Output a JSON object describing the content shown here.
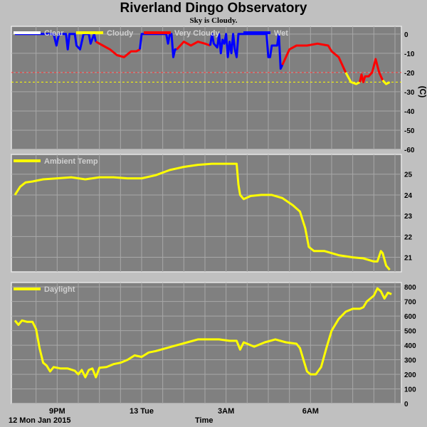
{
  "page": {
    "title": "Riverland Dingo Observatory",
    "subtitle": "Sky is Cloudy.",
    "x_axis_title": "Time",
    "date_label": "12 Mon Jan 2015"
  },
  "chart_data": [
    {
      "type": "line",
      "ylabel": "(C)",
      "ylim": [
        -60,
        4
      ],
      "yticks": [
        0,
        -10,
        -20,
        -30,
        -40,
        -50,
        -60
      ],
      "xlim": [
        0,
        10.8
      ],
      "xticks": [
        {
          "x": 1.2,
          "label": "9PM"
        },
        {
          "x": 3.6,
          "label": "13 Tue"
        },
        {
          "x": 6.0,
          "label": "3AM"
        },
        {
          "x": 8.4,
          "label": "6AM"
        }
      ],
      "thresholds": [
        {
          "value": -20,
          "color": "#ff3030"
        },
        {
          "value": -25,
          "color": "#ffff00"
        }
      ],
      "legend": [
        {
          "name": "Clear",
          "color": "#ffffff"
        },
        {
          "name": "Cloudy",
          "color": "#ffff00"
        },
        {
          "name": "Very Cloudy",
          "color": "#ff0000"
        },
        {
          "name": "Wet",
          "color": "#0000ff"
        }
      ],
      "series": [
        {
          "color": "#0000ff",
          "points": [
            [
              0,
              0
            ],
            [
              1.1,
              0
            ],
            [
              1.18,
              -6
            ],
            [
              1.25,
              0
            ],
            [
              1.45,
              0
            ],
            [
              1.5,
              -8
            ],
            [
              1.55,
              0
            ],
            [
              1.7,
              0
            ],
            [
              1.75,
              -6
            ],
            [
              1.85,
              -8
            ],
            [
              1.95,
              0
            ],
            [
              2.1,
              0
            ],
            [
              2.15,
              -5
            ],
            [
              2.25,
              0
            ],
            [
              2.3,
              -4
            ]
          ]
        },
        {
          "color": "#ff0000",
          "points": [
            [
              2.3,
              -4
            ],
            [
              2.5,
              -6
            ],
            [
              2.7,
              -8
            ],
            [
              2.9,
              -11
            ],
            [
              3.1,
              -12
            ],
            [
              3.3,
              -9
            ],
            [
              3.45,
              -9
            ],
            [
              3.55,
              -8
            ]
          ]
        },
        {
          "color": "#0000ff",
          "points": [
            [
              3.55,
              -8
            ],
            [
              3.6,
              0
            ],
            [
              4.3,
              0
            ],
            [
              4.35,
              -5
            ],
            [
              4.4,
              0
            ],
            [
              4.45,
              0
            ],
            [
              4.5,
              -12
            ],
            [
              4.55,
              -8
            ],
            [
              4.6,
              -8
            ]
          ]
        },
        {
          "color": "#ff0000",
          "points": [
            [
              4.6,
              -8
            ],
            [
              4.8,
              -4
            ],
            [
              5.0,
              -6
            ],
            [
              5.2,
              -4
            ],
            [
              5.4,
              -5
            ],
            [
              5.55,
              -6
            ]
          ]
        },
        {
          "color": "#0000ff",
          "points": [
            [
              5.55,
              -6
            ],
            [
              5.6,
              0
            ],
            [
              5.65,
              -5
            ],
            [
              5.75,
              -7
            ],
            [
              5.8,
              0
            ],
            [
              5.85,
              -10
            ],
            [
              5.9,
              -3
            ],
            [
              5.95,
              -5
            ],
            [
              6.0,
              0
            ],
            [
              6.05,
              -12
            ],
            [
              6.1,
              -4
            ],
            [
              6.15,
              -10
            ],
            [
              6.2,
              0
            ],
            [
              6.25,
              -8
            ],
            [
              6.3,
              -12
            ],
            [
              6.35,
              0
            ],
            [
              7.15,
              0
            ],
            [
              7.2,
              -12
            ],
            [
              7.25,
              -12
            ],
            [
              7.3,
              -6
            ],
            [
              7.45,
              -6
            ],
            [
              7.5,
              0
            ],
            [
              7.55,
              -18
            ],
            [
              7.6,
              -16
            ]
          ]
        },
        {
          "color": "#ff0000",
          "points": [
            [
              7.6,
              -16
            ],
            [
              7.8,
              -8
            ],
            [
              8.0,
              -6
            ],
            [
              8.3,
              -6
            ],
            [
              8.6,
              -5
            ],
            [
              8.9,
              -6
            ],
            [
              9.0,
              -9
            ],
            [
              9.2,
              -12
            ],
            [
              9.4,
              -20
            ]
          ]
        },
        {
          "color": "#ffff00",
          "points": [
            [
              9.4,
              -20
            ],
            [
              9.55,
              -25
            ],
            [
              9.7,
              -26
            ],
            [
              9.8,
              -25
            ]
          ]
        },
        {
          "color": "#ff0000",
          "points": [
            [
              9.8,
              -25
            ],
            [
              9.85,
              -21
            ],
            [
              9.9,
              -25
            ],
            [
              9.95,
              -22
            ],
            [
              10.05,
              -22
            ],
            [
              10.15,
              -20
            ],
            [
              10.25,
              -13
            ],
            [
              10.35,
              -20
            ],
            [
              10.45,
              -24
            ]
          ]
        },
        {
          "color": "#ffff00",
          "points": [
            [
              10.45,
              -24
            ],
            [
              10.55,
              -26
            ],
            [
              10.65,
              -25
            ]
          ]
        }
      ]
    },
    {
      "type": "line",
      "ylim": [
        20.3,
        25.95
      ],
      "yticks": [
        25,
        24,
        23,
        22,
        21
      ],
      "xlim": [
        0,
        10.8
      ],
      "xticks": [
        {
          "x": 1.2,
          "label": "9PM"
        },
        {
          "x": 3.6,
          "label": "13 Tue"
        },
        {
          "x": 6.0,
          "label": "3AM"
        },
        {
          "x": 8.4,
          "label": "6AM"
        }
      ],
      "legend": [
        {
          "name": "Ambient Temp",
          "color": "#ffff00"
        }
      ],
      "series": [
        {
          "name": "Ambient Temp",
          "color": "#ffff00",
          "points": [
            [
              0,
              24
            ],
            [
              0.15,
              24.4
            ],
            [
              0.3,
              24.6
            ],
            [
              0.5,
              24.65
            ],
            [
              0.8,
              24.75
            ],
            [
              1.2,
              24.8
            ],
            [
              1.6,
              24.85
            ],
            [
              2.0,
              24.75
            ],
            [
              2.4,
              24.85
            ],
            [
              2.8,
              24.85
            ],
            [
              3.2,
              24.8
            ],
            [
              3.6,
              24.8
            ],
            [
              4.0,
              24.95
            ],
            [
              4.4,
              25.2
            ],
            [
              4.8,
              25.35
            ],
            [
              5.2,
              25.45
            ],
            [
              5.6,
              25.5
            ],
            [
              6.0,
              25.5
            ],
            [
              6.3,
              25.5
            ],
            [
              6.35,
              24.5
            ],
            [
              6.4,
              24.0
            ],
            [
              6.5,
              23.8
            ],
            [
              6.7,
              23.95
            ],
            [
              7.0,
              24.0
            ],
            [
              7.3,
              24.0
            ],
            [
              7.6,
              23.85
            ],
            [
              7.9,
              23.5
            ],
            [
              8.1,
              23.2
            ],
            [
              8.25,
              22.4
            ],
            [
              8.35,
              21.5
            ],
            [
              8.5,
              21.3
            ],
            [
              8.8,
              21.3
            ],
            [
              9.2,
              21.1
            ],
            [
              9.6,
              21.0
            ],
            [
              9.9,
              20.95
            ],
            [
              10.2,
              20.8
            ],
            [
              10.3,
              20.8
            ],
            [
              10.4,
              21.3
            ],
            [
              10.45,
              21.2
            ],
            [
              10.55,
              20.6
            ],
            [
              10.65,
              20.4
            ]
          ]
        }
      ]
    },
    {
      "type": "line",
      "ylim": [
        0,
        830
      ],
      "yticks": [
        800,
        700,
        600,
        500,
        400,
        300,
        200,
        100,
        0
      ],
      "xlim": [
        0,
        10.8
      ],
      "xticks": [
        {
          "x": 1.2,
          "label": "9PM"
        },
        {
          "x": 3.6,
          "label": "13 Tue"
        },
        {
          "x": 6.0,
          "label": "3AM"
        },
        {
          "x": 8.4,
          "label": "6AM"
        }
      ],
      "legend": [
        {
          "name": "Daylight",
          "color": "#ffff00"
        }
      ],
      "series": [
        {
          "name": "Daylight",
          "color": "#ffff00",
          "points": [
            [
              0,
              570
            ],
            [
              0.1,
              540
            ],
            [
              0.2,
              570
            ],
            [
              0.35,
              560
            ],
            [
              0.5,
              560
            ],
            [
              0.6,
              510
            ],
            [
              0.7,
              380
            ],
            [
              0.8,
              280
            ],
            [
              0.9,
              260
            ],
            [
              1.0,
              220
            ],
            [
              1.1,
              250
            ],
            [
              1.3,
              240
            ],
            [
              1.5,
              240
            ],
            [
              1.7,
              225
            ],
            [
              1.8,
              200
            ],
            [
              1.9,
              230
            ],
            [
              2.0,
              180
            ],
            [
              2.1,
              230
            ],
            [
              2.2,
              240
            ],
            [
              2.3,
              180
            ],
            [
              2.4,
              245
            ],
            [
              2.6,
              250
            ],
            [
              2.8,
              270
            ],
            [
              3.0,
              280
            ],
            [
              3.2,
              300
            ],
            [
              3.4,
              330
            ],
            [
              3.6,
              320
            ],
            [
              3.8,
              350
            ],
            [
              4.0,
              360
            ],
            [
              4.3,
              380
            ],
            [
              4.6,
              400
            ],
            [
              4.9,
              420
            ],
            [
              5.2,
              440
            ],
            [
              5.5,
              440
            ],
            [
              5.8,
              440
            ],
            [
              6.1,
              430
            ],
            [
              6.3,
              430
            ],
            [
              6.4,
              370
            ],
            [
              6.5,
              420
            ],
            [
              6.8,
              390
            ],
            [
              7.1,
              420
            ],
            [
              7.4,
              440
            ],
            [
              7.7,
              420
            ],
            [
              8.0,
              410
            ],
            [
              8.1,
              380
            ],
            [
              8.2,
              300
            ],
            [
              8.3,
              220
            ],
            [
              8.4,
              200
            ],
            [
              8.55,
              200
            ],
            [
              8.7,
              250
            ],
            [
              8.85,
              380
            ],
            [
              9.0,
              500
            ],
            [
              9.2,
              580
            ],
            [
              9.4,
              630
            ],
            [
              9.6,
              650
            ],
            [
              9.8,
              650
            ],
            [
              9.9,
              660
            ],
            [
              10.0,
              700
            ],
            [
              10.1,
              720
            ],
            [
              10.2,
              740
            ],
            [
              10.3,
              790
            ],
            [
              10.4,
              770
            ],
            [
              10.5,
              720
            ],
            [
              10.6,
              760
            ],
            [
              10.7,
              750
            ]
          ]
        }
      ]
    }
  ]
}
